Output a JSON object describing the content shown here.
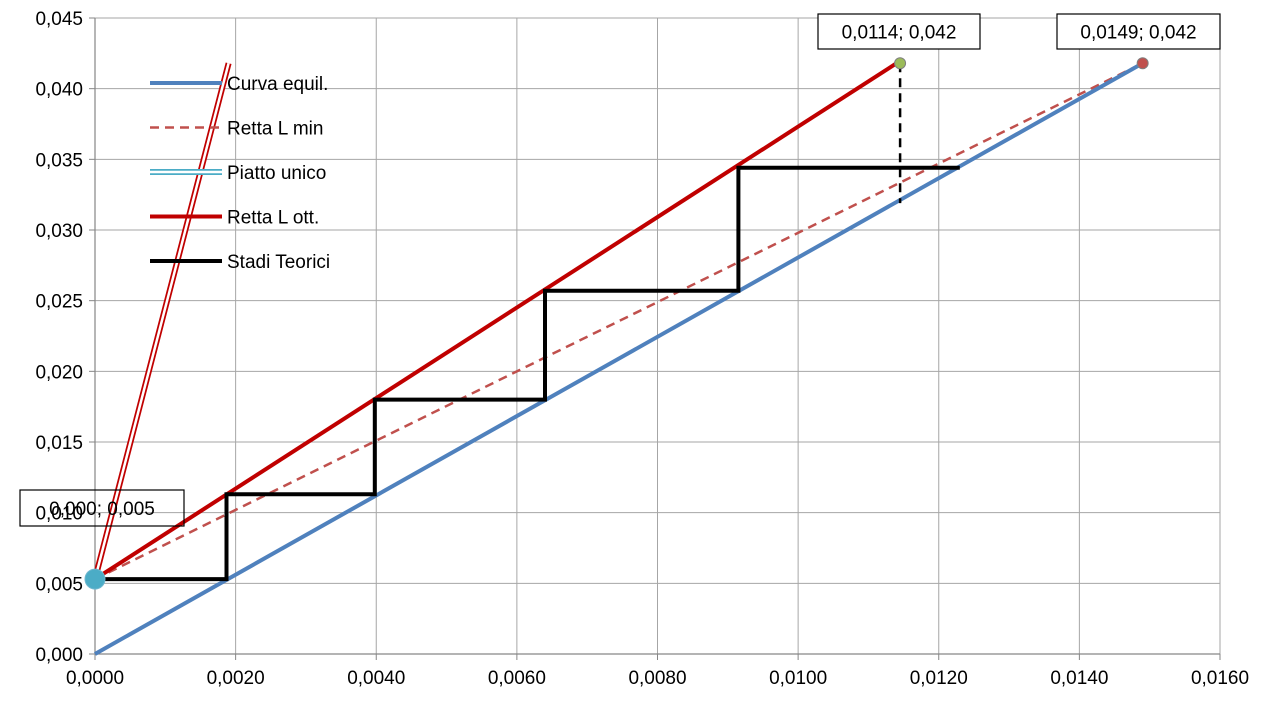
{
  "chart_data": {
    "type": "line",
    "title": "",
    "xlabel": "",
    "ylabel": "",
    "xlim": [
      0,
      0.016
    ],
    "ylim": [
      0,
      0.045
    ],
    "grid": true,
    "legend_position": "top-left",
    "x_ticks": [
      {
        "value": 0.0,
        "label": "0,0000"
      },
      {
        "value": 0.002,
        "label": "0,0020"
      },
      {
        "value": 0.004,
        "label": "0,0040"
      },
      {
        "value": 0.006,
        "label": "0,0060"
      },
      {
        "value": 0.008,
        "label": "0,0080"
      },
      {
        "value": 0.01,
        "label": "0,0100"
      },
      {
        "value": 0.012,
        "label": "0,0120"
      },
      {
        "value": 0.014,
        "label": "0,0140"
      },
      {
        "value": 0.016,
        "label": "0,0160"
      }
    ],
    "y_ticks": [
      {
        "value": 0.0,
        "label": "0,000"
      },
      {
        "value": 0.005,
        "label": "0,005"
      },
      {
        "value": 0.01,
        "label": "0,010"
      },
      {
        "value": 0.015,
        "label": "0,015"
      },
      {
        "value": 0.02,
        "label": "0,020"
      },
      {
        "value": 0.025,
        "label": "0,025"
      },
      {
        "value": 0.03,
        "label": "0,030"
      },
      {
        "value": 0.035,
        "label": "0,035"
      },
      {
        "value": 0.04,
        "label": "0,040"
      },
      {
        "value": 0.045,
        "label": "0,045"
      }
    ],
    "series": [
      {
        "name": "Curva equil.",
        "color": "#4f81bd",
        "style": "solid",
        "points": [
          [
            0.0,
            0.0
          ],
          [
            0.0149,
            0.0418
          ]
        ]
      },
      {
        "name": "Retta L min",
        "color": "#c0504d",
        "style": "dashed",
        "points": [
          [
            0.0,
            0.0053
          ],
          [
            0.0149,
            0.0418
          ]
        ]
      },
      {
        "name": "Piatto unico",
        "color": "#4bacc6",
        "style": "double",
        "points": [
          [
            0.0,
            0.0053
          ],
          [
            0.00045,
            0.0053
          ]
        ]
      },
      {
        "name": "Retta L ott.",
        "color": "#c00000",
        "style": "solid",
        "points": [
          [
            0.0,
            0.0053
          ],
          [
            0.0114,
            0.0418
          ]
        ]
      },
      {
        "name": "Stadi Teorici",
        "color": "#000000",
        "style": "solid",
        "points": [
          [
            0.0,
            0.0053
          ],
          [
            0.00187,
            0.0053
          ],
          [
            0.00187,
            0.0113
          ],
          [
            0.00398,
            0.0113
          ],
          [
            0.00398,
            0.018
          ],
          [
            0.0064,
            0.018
          ],
          [
            0.0064,
            0.0257
          ],
          [
            0.00915,
            0.0257
          ],
          [
            0.00915,
            0.0344
          ],
          [
            0.0123,
            0.0344
          ]
        ]
      }
    ],
    "extra_lines": [
      {
        "color": "#c00000",
        "style": "double",
        "points": [
          [
            0.0,
            0.0053
          ],
          [
            0.0019,
            0.0418
          ]
        ]
      },
      {
        "color": "#000000",
        "style": "dashed",
        "points": [
          [
            0.01145,
            0.0418
          ],
          [
            0.01145,
            0.0319
          ]
        ]
      }
    ],
    "markers": [
      {
        "x": 0.0,
        "y": 0.0053,
        "color": "#4bacc6",
        "size": "large"
      },
      {
        "x": 0.01145,
        "y": 0.0418,
        "color": "#9bbb59",
        "size": "small"
      },
      {
        "x": 0.0149,
        "y": 0.0418,
        "color": "#c0504d",
        "size": "small"
      }
    ],
    "annotations": [
      {
        "text": "0,0114; 0,042",
        "x": 0.0114,
        "y": 0.0418
      },
      {
        "text": "0,0149; 0,042",
        "x": 0.0149,
        "y": 0.0418
      },
      {
        "text": "0,000; 0,005",
        "x": 0.0,
        "y": 0.0053
      }
    ]
  }
}
